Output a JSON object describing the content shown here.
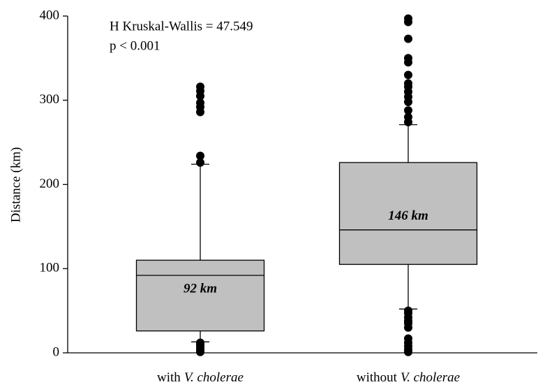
{
  "chart_data": {
    "type": "box",
    "y_label": "Distance (km)",
    "annotations": [
      "H Kruskal-Wallis = 47.549",
      "p < 0.001"
    ],
    "categories": [
      [
        "with",
        "V. cholerae"
      ],
      [
        "without",
        "V. cholerae"
      ]
    ],
    "ylim": [
      0,
      400
    ],
    "yticks": [
      0,
      100,
      200,
      300,
      400
    ],
    "color": "#c0c0c0",
    "boxes": [
      {
        "whisker_low": 13,
        "q1": 26,
        "median": 92,
        "q3": 110,
        "whisker_high": 224,
        "median_label": "92 km",
        "outliers": [
          1,
          3,
          5,
          8,
          10,
          12,
          226,
          234,
          286,
          292,
          297,
          305,
          311,
          316
        ]
      },
      {
        "whisker_low": 52,
        "q1": 105,
        "median": 146,
        "q3": 226,
        "whisker_high": 271,
        "median_label": "146 km",
        "outliers": [
          1,
          4,
          8,
          12,
          17,
          30,
          35,
          38,
          42,
          47,
          50,
          274,
          280,
          288,
          298,
          304,
          310,
          316,
          320,
          330,
          345,
          350,
          373,
          393,
          397
        ]
      }
    ]
  }
}
